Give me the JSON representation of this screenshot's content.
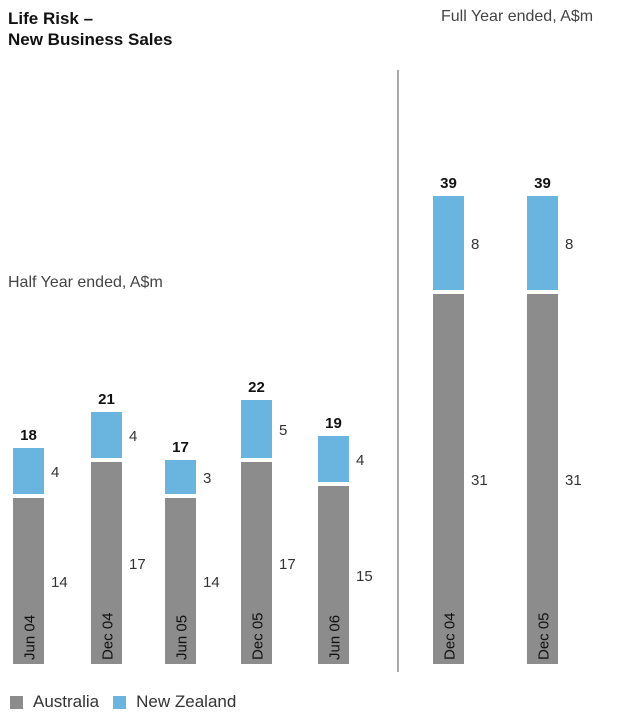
{
  "chart_data": {
    "type": "bar",
    "stacked": true,
    "title_lines": [
      "Life Risk –",
      "New Business Sales"
    ],
    "panels": [
      {
        "label": "Half Year ended, A$m",
        "categories": [
          "Jun 04",
          "Dec 04",
          "Jun 05",
          "Dec 05",
          "Jun 06"
        ],
        "series": [
          {
            "name": "Australia",
            "values": [
              14,
              17,
              14,
              17,
              15
            ]
          },
          {
            "name": "New Zealand",
            "values": [
              4,
              4,
              3,
              5,
              4
            ]
          }
        ],
        "totals": [
          18,
          21,
          17,
          22,
          19
        ]
      },
      {
        "label": "Full Year ended, A$m",
        "categories": [
          "Dec 04",
          "Dec 05"
        ],
        "series": [
          {
            "name": "Australia",
            "values": [
              31,
              31
            ]
          },
          {
            "name": "New Zealand",
            "values": [
              8,
              8
            ]
          }
        ],
        "totals": [
          39,
          39
        ]
      }
    ],
    "legend": [
      "Australia",
      "New Zealand"
    ],
    "legend_position": "bottom-left",
    "grid": false,
    "colors": {
      "Australia": "#8c8c8c",
      "New Zealand": "#6ab4e0"
    }
  }
}
